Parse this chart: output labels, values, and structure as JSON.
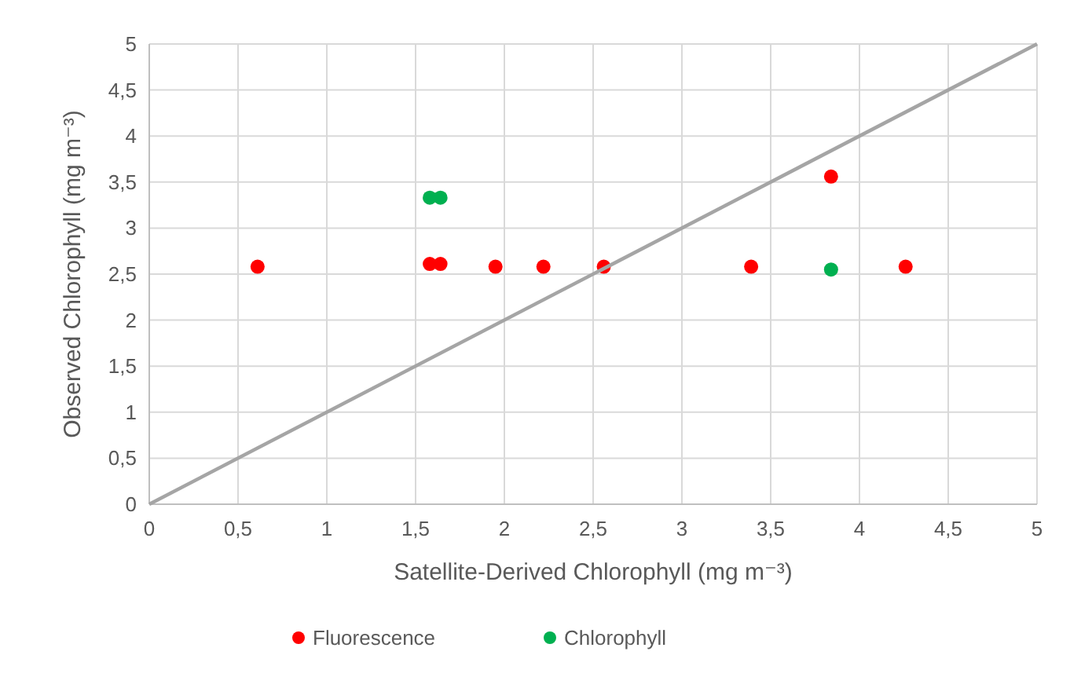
{
  "chart_data": {
    "type": "scatter",
    "xlabel": "Satellite-Derived Chlorophyll (mg m⁻³)",
    "ylabel": "Observed Chlorophyll (mg m⁻³)",
    "xlim": [
      0,
      5
    ],
    "ylim": [
      0,
      5
    ],
    "xticks": [
      0,
      {
        "value": 0.5,
        "label": "0,5"
      },
      1,
      {
        "value": 1.5,
        "label": "1,5"
      },
      2,
      {
        "value": 2.5,
        "label": "2,5"
      },
      3,
      {
        "value": 3.5,
        "label": "3,5"
      },
      4,
      {
        "value": 4.5,
        "label": "4,5"
      },
      5
    ],
    "yticks": [
      0,
      {
        "value": 0.5,
        "label": "0,5"
      },
      1,
      {
        "value": 1.5,
        "label": "1,5"
      },
      2,
      {
        "value": 2.5,
        "label": "2,5"
      },
      3,
      {
        "value": 3.5,
        "label": "3,5"
      },
      4,
      {
        "value": 4.5,
        "label": "4,5"
      },
      5
    ],
    "grid": true,
    "legend": "bottom",
    "series": [
      {
        "name": "Fluorescence",
        "color": "#ff0000",
        "marker": "circle",
        "x": [
          0.61,
          1.58,
          1.64,
          1.95,
          2.22,
          2.56,
          3.39,
          3.84,
          4.26
        ],
        "values": [
          2.58,
          2.61,
          2.61,
          2.58,
          2.58,
          2.58,
          2.58,
          3.56,
          2.58
        ]
      },
      {
        "name": "Chlorophyll",
        "color": "#00b050",
        "marker": "circle",
        "x": [
          1.58,
          1.64,
          3.84
        ],
        "values": [
          3.33,
          3.33,
          2.55
        ]
      },
      {
        "type": "line",
        "color": "#a5a5a5",
        "x": [
          0,
          5
        ],
        "values": [
          0,
          5
        ],
        "marker": "none"
      }
    ]
  }
}
